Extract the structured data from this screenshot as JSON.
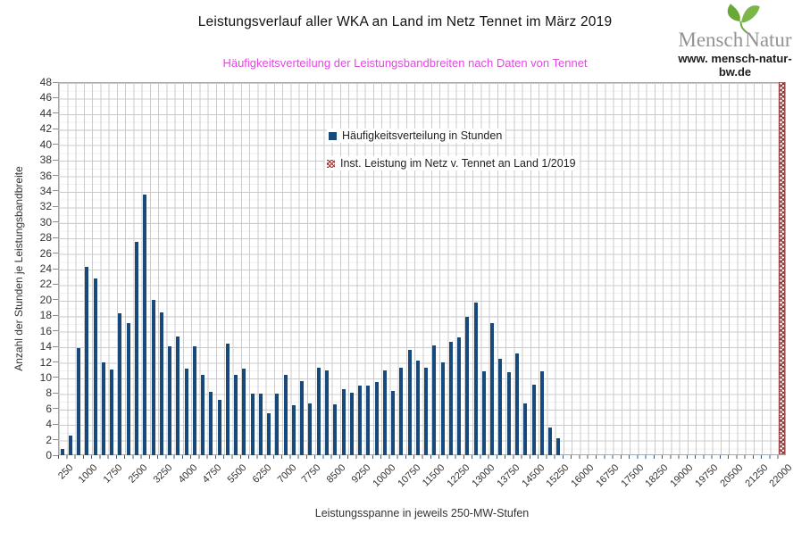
{
  "header": {
    "title": "Leistungsverlauf aller WKA an Land im Netz Tennet im März 2019",
    "subtitle": "Häufigkeitsverteilung der Leistungsbandbreiten nach Daten von Tennet"
  },
  "logo": {
    "brand_first": "Mensch",
    "brand_second": "Natur",
    "website": "www. mensch-natur-bw.de"
  },
  "legend": [
    {
      "label": "Häufigkeitsverteilung in Stunden",
      "marker": "solid-blue-square"
    },
    {
      "label": "Inst. Leistung im Netz v. Tennet an Land 1/2019",
      "marker": "red-hatched-square"
    }
  ],
  "colors": {
    "bar": "#17497a",
    "capacity_hatch": "#8b3737",
    "subtitle_magenta": "#e04ae0",
    "grid_major": "#cbcbcb",
    "grid_minor": "#f0f0f0",
    "axis_text": "#333333",
    "logo_green": "#7ab648",
    "logo_gray": "#939393"
  },
  "chart_data": {
    "type": "bar",
    "title": "Leistungsverlauf aller WKA an Land im Netz Tennet im März 2019",
    "subtitle": "Häufigkeitsverteilung der Leistungsbandbreiten nach Daten von Tennet",
    "xlabel": "Leistungsspanne in jeweils 250-MW-Stufen",
    "ylabel": "Anzahl der Stunden je Leistungsbandbreite",
    "ylim": [
      0,
      48
    ],
    "ytick_step": 2,
    "grid": true,
    "legend_position": "inside-top-center",
    "x_start_mw": 250,
    "x_step_mw": 250,
    "x_slots": 88,
    "x_tick_labels": [
      "250",
      "1000",
      "1750",
      "2500",
      "3250",
      "4000",
      "4750",
      "5500",
      "6250",
      "7000",
      "7750",
      "8500",
      "9250",
      "10000",
      "10750",
      "11500",
      "12250",
      "13000",
      "13750",
      "14500",
      "15250",
      "16000",
      "16750",
      "17500",
      "18250",
      "19000",
      "19750",
      "20500",
      "21250",
      "22000"
    ],
    "series": [
      {
        "name": "Häufigkeitsverteilung in Stunden",
        "x_mw": [
          250,
          500,
          750,
          1000,
          1250,
          1500,
          1750,
          2000,
          2250,
          2500,
          2750,
          3000,
          3250,
          3500,
          3750,
          4000,
          4250,
          4500,
          4750,
          5000,
          5250,
          5500,
          5750,
          6000,
          6250,
          6500,
          6750,
          7000,
          7250,
          7500,
          7750,
          8000,
          8250,
          8500,
          8750,
          9000,
          9250,
          9500,
          9750,
          10000,
          10250,
          10500,
          10750,
          11000,
          11250,
          11500,
          11750,
          12000,
          12250,
          12500,
          12750,
          13000,
          13250,
          13500,
          13750,
          14000,
          14250,
          14500,
          14750,
          15000,
          15250
        ],
        "values": [
          0.8,
          2.5,
          13.8,
          24.2,
          22.7,
          12,
          11,
          18.3,
          17,
          27.5,
          33.5,
          20,
          18.4,
          14,
          15.3,
          11.1,
          14,
          10.3,
          8.1,
          7.1,
          14.4,
          10.3,
          11.1,
          7.9,
          7.9,
          5.4,
          7.9,
          10.3,
          6.4,
          9.5,
          6.7,
          11.3,
          10.9,
          6.6,
          8.5,
          8,
          8.9,
          8.9,
          9.4,
          10.9,
          8.3,
          11.3,
          13.5,
          12.2,
          11.2,
          14.1,
          11.9,
          14.6,
          15.2,
          17.8,
          19.6,
          10.8,
          17,
          12.4,
          10.7,
          13.1,
          6.7,
          9.1,
          10.8,
          3.6,
          2.2
        ]
      }
    ],
    "capacity_marker": {
      "name": "Inst. Leistung im Netz v. Tennet an Land 1/2019",
      "x_mw": 22000,
      "full_height": true
    }
  }
}
